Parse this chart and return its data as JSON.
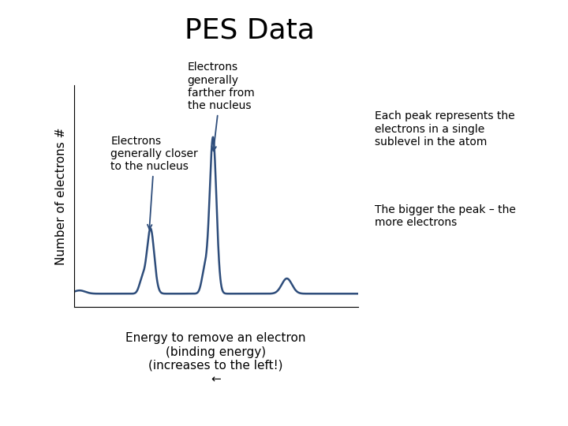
{
  "title": "PES Data",
  "title_fontsize": 26,
  "ylabel": "Number of electrons #",
  "ylabel_fontsize": 11,
  "xlabel_line1": "Energy to remove an electron",
  "xlabel_line2": "(binding energy)",
  "xlabel_line3": "(increases to the left!)",
  "xlabel_arrow": "←",
  "xlabel_fontsize": 11,
  "line_color": "#2E4D7B",
  "line_width": 1.8,
  "background_color": "#ffffff",
  "annotation1_text": "Electrons\ngenerally closer\nto the nucleus",
  "annotation2_text": "Electrons\ngenerally\nfarther from\nthe nucleus",
  "note1_text": "Each peak represents the\nelectrons in a single\nsublevel in the atom",
  "note2_text": "The bigger the peak – the\nmore electrons",
  "annotation_fontsize": 10,
  "note_fontsize": 10
}
